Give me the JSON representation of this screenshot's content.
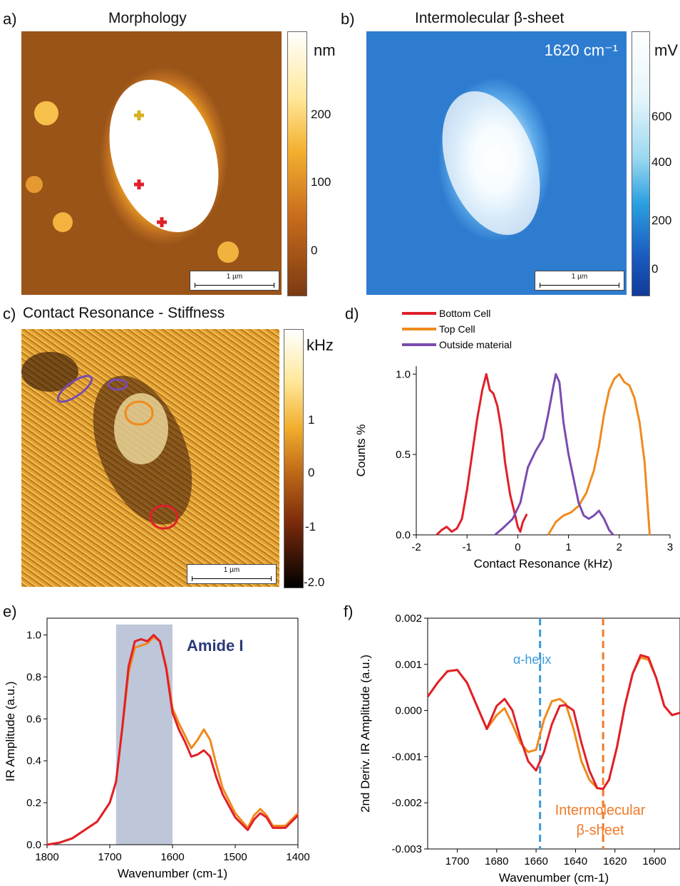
{
  "panels": {
    "a": {
      "label": "a)",
      "title": "Morphology",
      "colorbar_unit": "nm",
      "colorbar_ticks": [
        "200",
        "100",
        "0"
      ],
      "scalebar": "1 µm"
    },
    "b": {
      "label": "b)",
      "title": "Intermolecular β-sheet",
      "annotation": "1620 cm⁻¹",
      "colorbar_unit": "mV",
      "colorbar_ticks": [
        "600",
        "400",
        "200",
        "0"
      ],
      "scalebar": "1 µm"
    },
    "c": {
      "label": "c)",
      "title": "Contact Resonance - Stiffness",
      "colorbar_unit": "kHz",
      "colorbar_ticks": [
        "1",
        "0",
        "-1",
        "-2.0"
      ],
      "scalebar": "1 µm"
    },
    "d": {
      "label": "d)"
    },
    "e": {
      "label": "e)",
      "annotation": "Amide I"
    },
    "f": {
      "label": "f)",
      "annotations": {
        "alpha": "α-helix",
        "beta_line1": "Intermolecular",
        "beta_line2": "β-sheet"
      }
    }
  },
  "colors": {
    "bottom_cell": "#e0202a",
    "top_cell": "#f08a1c",
    "outside_material": "#7a4bb0",
    "amide_band": "#9aa9c4",
    "alpha_line": "#3a9ad8",
    "beta_line": "#f07a2a"
  },
  "chart_data": [
    {
      "id": "d",
      "type": "line",
      "xlabel": "Contact Resonance (kHz)",
      "ylabel": "Counts %",
      "xlim": [
        -2,
        3
      ],
      "ylim": [
        0,
        1.05
      ],
      "xticks": [
        -2,
        -1,
        0,
        1,
        2,
        3
      ],
      "yticks": [
        0.0,
        0.5,
        1.0
      ],
      "xtick_labels": [
        "-2",
        "-1",
        "0",
        "1",
        "2",
        "3"
      ],
      "ytick_labels": [
        "0.0",
        "0.5",
        "1.0"
      ],
      "legend_position": "top-left",
      "series": [
        {
          "name": "Bottom Cell",
          "color": "#e0202a",
          "x": [
            -1.6,
            -1.5,
            -1.4,
            -1.3,
            -1.2,
            -1.1,
            -1.0,
            -0.9,
            -0.8,
            -0.7,
            -0.62,
            -0.55,
            -0.48,
            -0.4,
            -0.32,
            -0.25,
            -0.15,
            -0.05,
            0.0,
            0.05,
            0.1,
            0.18
          ],
          "y": [
            0.0,
            0.03,
            0.05,
            0.02,
            0.04,
            0.1,
            0.28,
            0.5,
            0.72,
            0.9,
            1.0,
            0.9,
            0.88,
            0.8,
            0.65,
            0.45,
            0.25,
            0.12,
            0.05,
            0.02,
            0.08,
            0.13
          ]
        },
        {
          "name": "Top Cell",
          "color": "#f08a1c",
          "x": [
            0.6,
            0.75,
            0.9,
            1.05,
            1.2,
            1.35,
            1.5,
            1.6,
            1.7,
            1.8,
            1.9,
            2.0,
            2.1,
            2.2,
            2.3,
            2.4,
            2.5,
            2.6
          ],
          "y": [
            0.0,
            0.08,
            0.12,
            0.14,
            0.18,
            0.26,
            0.4,
            0.55,
            0.75,
            0.9,
            0.97,
            1.0,
            0.95,
            0.93,
            0.85,
            0.7,
            0.45,
            0.0
          ]
        },
        {
          "name": "Outside material",
          "color": "#7a4bb0",
          "x": [
            -0.45,
            -0.3,
            -0.1,
            0.05,
            0.2,
            0.35,
            0.5,
            0.6,
            0.7,
            0.75,
            0.82,
            0.9,
            1.0,
            1.1,
            1.2,
            1.3,
            1.4,
            1.5,
            1.6,
            1.7,
            1.8,
            1.88
          ],
          "y": [
            0.0,
            0.04,
            0.1,
            0.2,
            0.42,
            0.52,
            0.6,
            0.75,
            0.92,
            1.0,
            0.95,
            0.7,
            0.5,
            0.35,
            0.2,
            0.12,
            0.1,
            0.12,
            0.15,
            0.1,
            0.03,
            0.0
          ]
        }
      ]
    },
    {
      "id": "e",
      "type": "line",
      "xlabel": "Wavenumber (cm-1)",
      "ylabel": "IR Amplitude (a.u.)",
      "xlim": [
        1800,
        1400
      ],
      "ylim": [
        0,
        1.08
      ],
      "xticks": [
        1800,
        1700,
        1600,
        1500,
        1400
      ],
      "yticks": [
        0.0,
        0.2,
        0.4,
        0.6,
        0.8,
        1.0
      ],
      "xtick_labels": [
        "1800",
        "1700",
        "1600",
        "1500",
        "1400"
      ],
      "ytick_labels": [
        "0.0",
        "0.2",
        "0.4",
        "0.6",
        "0.8",
        "1.0"
      ],
      "highlight_band": [
        1690,
        1600
      ],
      "series": [
        {
          "color": "#f08a1c",
          "x": [
            1800,
            1780,
            1760,
            1740,
            1720,
            1700,
            1690,
            1680,
            1670,
            1660,
            1650,
            1640,
            1630,
            1620,
            1610,
            1600,
            1590,
            1580,
            1570,
            1560,
            1550,
            1540,
            1530,
            1520,
            1500,
            1480,
            1470,
            1460,
            1450,
            1440,
            1420,
            1400
          ],
          "y": [
            0.0,
            0.01,
            0.03,
            0.07,
            0.11,
            0.2,
            0.3,
            0.55,
            0.82,
            0.94,
            0.95,
            0.96,
            0.99,
            0.97,
            0.85,
            0.65,
            0.58,
            0.52,
            0.46,
            0.5,
            0.55,
            0.5,
            0.38,
            0.27,
            0.15,
            0.08,
            0.14,
            0.17,
            0.14,
            0.09,
            0.09,
            0.15
          ]
        },
        {
          "color": "#e0202a",
          "x": [
            1800,
            1780,
            1760,
            1740,
            1720,
            1700,
            1690,
            1680,
            1670,
            1660,
            1650,
            1640,
            1630,
            1620,
            1610,
            1600,
            1590,
            1580,
            1570,
            1560,
            1550,
            1540,
            1530,
            1520,
            1500,
            1480,
            1470,
            1460,
            1450,
            1440,
            1420,
            1400
          ],
          "y": [
            0.0,
            0.01,
            0.03,
            0.07,
            0.11,
            0.2,
            0.3,
            0.56,
            0.85,
            0.97,
            0.98,
            0.97,
            1.0,
            0.97,
            0.84,
            0.63,
            0.55,
            0.49,
            0.42,
            0.43,
            0.45,
            0.42,
            0.32,
            0.24,
            0.13,
            0.07,
            0.12,
            0.15,
            0.13,
            0.08,
            0.08,
            0.14
          ]
        }
      ]
    },
    {
      "id": "f",
      "type": "line",
      "xlabel": "Wavenumber (cm-1)",
      "ylabel": "2nd Deriv. IR Amplitude (a.u.)",
      "xlim": [
        1715,
        1587
      ],
      "ylim": [
        -0.003,
        0.002
      ],
      "xticks": [
        1700,
        1680,
        1660,
        1640,
        1620,
        1600
      ],
      "yticks": [
        -0.003,
        -0.002,
        -0.001,
        0.0,
        0.001,
        0.002
      ],
      "xtick_labels": [
        "1700",
        "1680",
        "1660",
        "1640",
        "1620",
        "1600"
      ],
      "ytick_labels": [
        "-0.003",
        "-0.002",
        "-0.001",
        "0.000",
        "0.001",
        "0.002"
      ],
      "vlines": [
        {
          "x": 1658,
          "color": "#3a9ad8"
        },
        {
          "x": 1626,
          "color": "#f07a2a"
        }
      ],
      "series": [
        {
          "color": "#f08a1c",
          "x": [
            1715,
            1710,
            1705,
            1700,
            1695,
            1690,
            1685,
            1680,
            1676,
            1672,
            1668,
            1664,
            1660,
            1656,
            1652,
            1648,
            1645,
            1641,
            1637,
            1633,
            1629,
            1626,
            1623,
            1619,
            1615,
            1611,
            1607,
            1603,
            1599,
            1595,
            1591,
            1587
          ],
          "y": [
            0.0003,
            0.0006,
            0.00085,
            0.00088,
            0.0006,
            0.0001,
            -0.0004,
            -0.0001,
            5e-05,
            -0.0003,
            -0.0007,
            -0.0009,
            -0.00085,
            -0.0002,
            0.0002,
            0.00025,
            0.00015,
            -0.0004,
            -0.0011,
            -0.0015,
            -0.00168,
            -0.0017,
            -0.0015,
            -0.0008,
            0.0001,
            0.0008,
            0.00115,
            0.0011,
            0.0007,
            0.0001,
            -0.0001,
            -5e-05
          ]
        },
        {
          "color": "#e0202a",
          "x": [
            1715,
            1710,
            1705,
            1700,
            1695,
            1690,
            1685,
            1680,
            1676,
            1672,
            1668,
            1664,
            1660,
            1656,
            1652,
            1648,
            1645,
            1641,
            1637,
            1633,
            1629,
            1626,
            1623,
            1619,
            1615,
            1611,
            1607,
            1603,
            1599,
            1595,
            1591,
            1587
          ],
          "y": [
            0.0003,
            0.0006,
            0.00085,
            0.00088,
            0.0006,
            0.0001,
            -0.0004,
            0.0001,
            0.00025,
            0.0,
            -0.0006,
            -0.0011,
            -0.0013,
            -0.0009,
            -0.0003,
            0.0001,
            0.00012,
            0.0,
            -0.0007,
            -0.0013,
            -0.00168,
            -0.0017,
            -0.0015,
            -0.0008,
            0.0001,
            0.0008,
            0.0012,
            0.00115,
            0.0007,
            0.0001,
            -0.0001,
            -5e-05
          ]
        }
      ]
    }
  ]
}
